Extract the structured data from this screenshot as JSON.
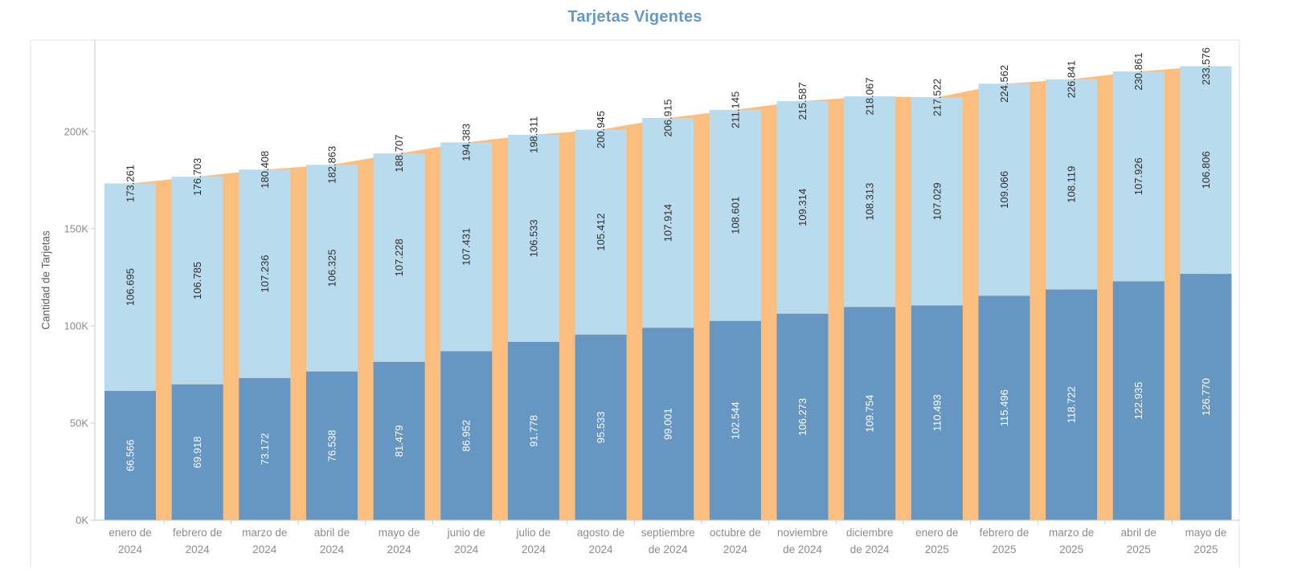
{
  "title": "Tarjetas Vigentes",
  "y_axis": {
    "title": "Cantidad de Tarjetas",
    "tick_labels": [
      "0K",
      "50K",
      "100K",
      "150K",
      "200K"
    ],
    "tick_values": [
      0,
      50000,
      100000,
      150000,
      200000
    ]
  },
  "colors": {
    "title_text": "#6499CB",
    "bottom_segment": "#6697C2",
    "top_segment": "#B9DBEE",
    "area": "#FBBE7E",
    "label_on_dark": "#FFFFFF",
    "label_on_light": "#2E2E2E",
    "total_label": "#2E2E2E",
    "axis_text": "#8C8C8C",
    "axis_title_text": "#616161",
    "border": "#E4E4E4",
    "axis_line": "#C9C9C9",
    "tick_mark": "#C9C9C9"
  },
  "chart_data": {
    "type": "bar",
    "subtype": "stacked-bars-with-total-area-overlay",
    "title": "Tarjetas Vigentes",
    "xlabel": "",
    "ylabel": "Cantidad de Tarjetas",
    "ylim": [
      0,
      247000
    ],
    "grid": false,
    "legend": "none",
    "value_label_format": "thousands-separated-with-dot",
    "categories": [
      "enero de 2024",
      "febrero de 2024",
      "marzo de 2024",
      "abril de 2024",
      "mayo de 2024",
      "junio de 2024",
      "julio de 2024",
      "agosto de 2024",
      "septiembre de 2024",
      "octubre de 2024",
      "noviembre de 2024",
      "diciembre de 2024",
      "enero de 2025",
      "febrero de 2025",
      "marzo de 2025",
      "abril de 2025",
      "mayo de 2025"
    ],
    "category_label_lines": [
      [
        "enero de",
        "2024"
      ],
      [
        "febrero de",
        "2024"
      ],
      [
        "marzo de",
        "2024"
      ],
      [
        "abril de",
        "2024"
      ],
      [
        "mayo de",
        "2024"
      ],
      [
        "junio de",
        "2024"
      ],
      [
        "julio de",
        "2024"
      ],
      [
        "agosto de",
        "2024"
      ],
      [
        "septiembre",
        "de 2024"
      ],
      [
        "octubre de",
        "2024"
      ],
      [
        "noviembre",
        "de 2024"
      ],
      [
        "diciembre",
        "de 2024"
      ],
      [
        "enero de",
        "2025"
      ],
      [
        "febrero de",
        "2025"
      ],
      [
        "marzo de",
        "2025"
      ],
      [
        "abril de",
        "2025"
      ],
      [
        "mayo de",
        "2025"
      ]
    ],
    "series": [
      {
        "name": "bottom-segment",
        "color": "#6697C2",
        "mark": "bar",
        "values": [
          66566,
          69918,
          73172,
          76538,
          81479,
          86952,
          91778,
          95533,
          99001,
          102544,
          106273,
          109754,
          110493,
          115496,
          118722,
          122935,
          126770
        ]
      },
      {
        "name": "top-segment",
        "color": "#B9DBEE",
        "mark": "bar",
        "values": [
          106695,
          106785,
          107236,
          106325,
          107228,
          107431,
          106533,
          105412,
          107914,
          108601,
          109314,
          108313,
          107029,
          109066,
          108119,
          107926,
          106806
        ]
      },
      {
        "name": "total-area",
        "color": "#FBBE7E",
        "mark": "area",
        "values": [
          173261,
          176703,
          180408,
          182863,
          188707,
          194383,
          198311,
          200945,
          206915,
          211145,
          215587,
          218067,
          217522,
          224562,
          226841,
          230861,
          233576
        ]
      }
    ],
    "totals": [
      173261,
      176703,
      180408,
      182863,
      188707,
      194383,
      198311,
      200945,
      206915,
      211145,
      215587,
      218067,
      217522,
      224562,
      226841,
      230861,
      233576
    ]
  }
}
